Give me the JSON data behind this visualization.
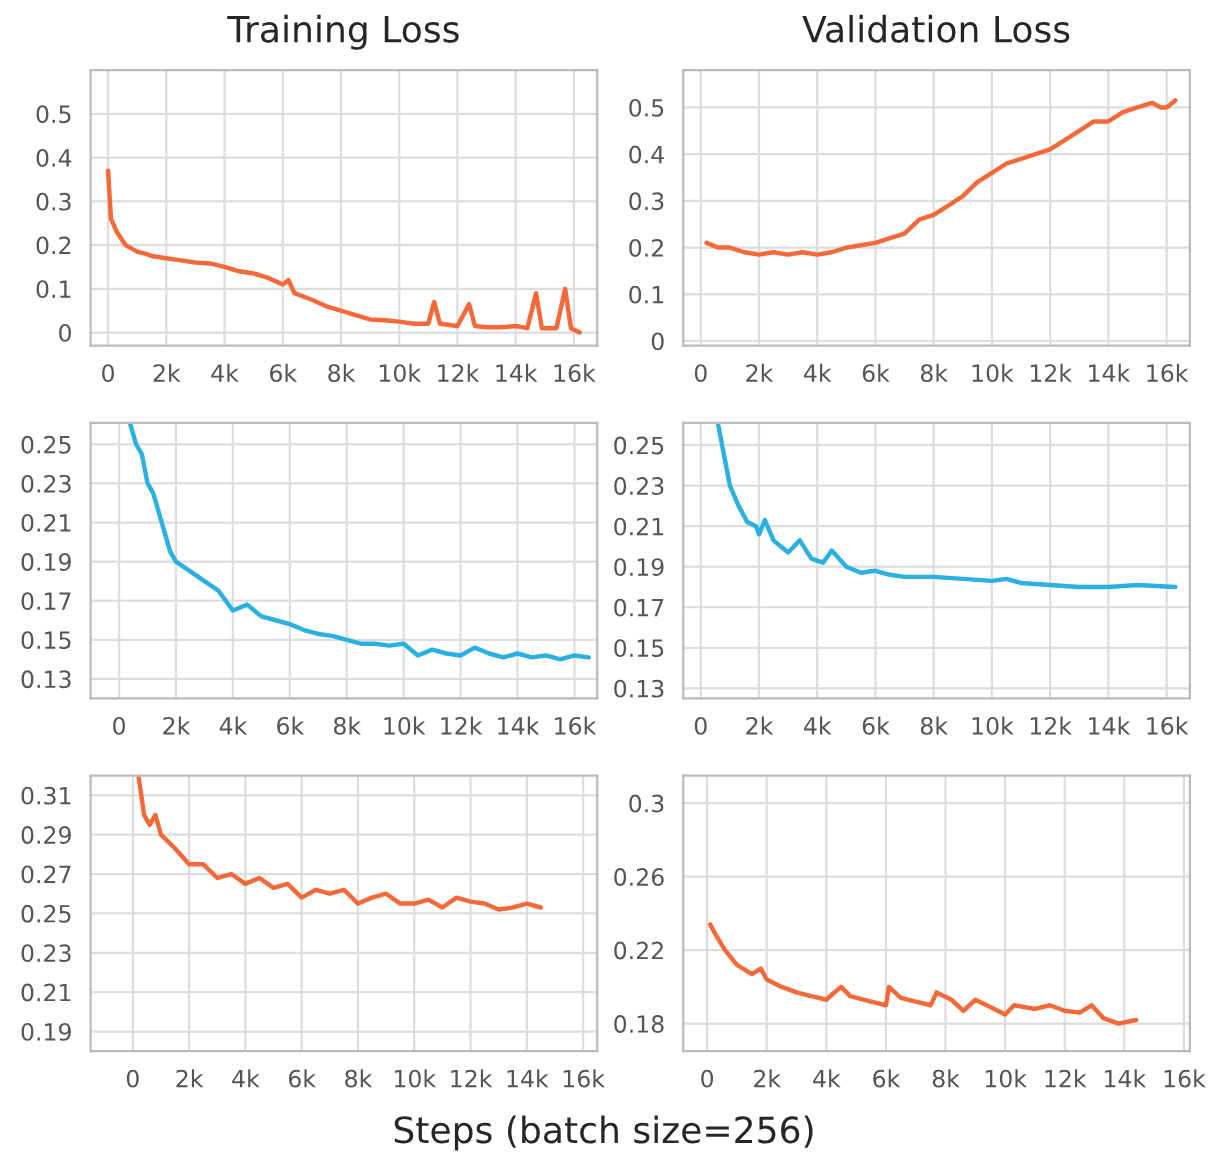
{
  "chart_data": [
    {
      "type": "line",
      "title": "Training Loss",
      "xlim": [
        -600,
        16800
      ],
      "ylim": [
        -0.03,
        0.6
      ],
      "xticks": [
        {
          "value": 0,
          "label": "0"
        },
        {
          "value": 2000,
          "label": "2k"
        },
        {
          "value": 4000,
          "label": "4k"
        },
        {
          "value": 6000,
          "label": "6k"
        },
        {
          "value": 8000,
          "label": "8k"
        },
        {
          "value": 10000,
          "label": "10k"
        },
        {
          "value": 12000,
          "label": "12k"
        },
        {
          "value": 14000,
          "label": "14k"
        },
        {
          "value": 16000,
          "label": "16k"
        }
      ],
      "yticks": [
        0,
        0.1,
        0.2,
        0.3,
        0.4,
        0.5
      ],
      "grid": true,
      "series": [
        {
          "color": "#f4693a",
          "x": [
            0,
            100,
            300,
            600,
            1000,
            1300,
            1500,
            2000,
            2500,
            3000,
            3500,
            4000,
            4500,
            5000,
            5500,
            6000,
            6200,
            6400,
            7000,
            7500,
            8000,
            8500,
            9000,
            9500,
            10000,
            10500,
            11000,
            11200,
            11400,
            12000,
            12400,
            12600,
            13000,
            13500,
            14000,
            14400,
            14700,
            14900,
            15400,
            15700,
            15900,
            16200
          ],
          "values": [
            0.37,
            0.26,
            0.23,
            0.2,
            0.185,
            0.18,
            0.175,
            0.17,
            0.165,
            0.16,
            0.158,
            0.15,
            0.14,
            0.135,
            0.125,
            0.11,
            0.12,
            0.09,
            0.075,
            0.06,
            0.05,
            0.04,
            0.03,
            0.028,
            0.025,
            0.02,
            0.02,
            0.07,
            0.02,
            0.015,
            0.065,
            0.015,
            0.012,
            0.012,
            0.015,
            0.01,
            0.09,
            0.01,
            0.01,
            0.1,
            0.01,
            0.0
          ]
        }
      ]
    },
    {
      "type": "line",
      "title": "Validation Loss",
      "xlim": [
        -600,
        16800
      ],
      "ylim": [
        -0.01,
        0.58
      ],
      "xticks": [
        {
          "value": 0,
          "label": "0"
        },
        {
          "value": 2000,
          "label": "2k"
        },
        {
          "value": 4000,
          "label": "4k"
        },
        {
          "value": 6000,
          "label": "6k"
        },
        {
          "value": 8000,
          "label": "8k"
        },
        {
          "value": 10000,
          "label": "10k"
        },
        {
          "value": 12000,
          "label": "12k"
        },
        {
          "value": 14000,
          "label": "14k"
        },
        {
          "value": 16000,
          "label": "16k"
        }
      ],
      "yticks": [
        0,
        0.1,
        0.2,
        0.3,
        0.4,
        0.5
      ],
      "grid": true,
      "series": [
        {
          "color": "#f4693a",
          "x": [
            200,
            600,
            1000,
            1500,
            2000,
            2500,
            3000,
            3500,
            4000,
            4500,
            5000,
            5500,
            6000,
            6500,
            7000,
            7500,
            8000,
            8500,
            9000,
            9500,
            10000,
            10500,
            11000,
            11500,
            12000,
            12500,
            13000,
            13500,
            14000,
            14500,
            15000,
            15500,
            15800,
            16000,
            16300
          ],
          "values": [
            0.21,
            0.2,
            0.2,
            0.19,
            0.185,
            0.19,
            0.185,
            0.19,
            0.185,
            0.19,
            0.2,
            0.205,
            0.21,
            0.22,
            0.23,
            0.26,
            0.27,
            0.29,
            0.31,
            0.34,
            0.36,
            0.38,
            0.39,
            0.4,
            0.41,
            0.43,
            0.45,
            0.47,
            0.47,
            0.49,
            0.5,
            0.51,
            0.5,
            0.5,
            0.515
          ]
        }
      ]
    },
    {
      "type": "line",
      "xlim": [
        -1000,
        16800
      ],
      "ylim": [
        0.12,
        0.261
      ],
      "xticks": [
        {
          "value": 0,
          "label": "0"
        },
        {
          "value": 2000,
          "label": "2k"
        },
        {
          "value": 4000,
          "label": "4k"
        },
        {
          "value": 6000,
          "label": "6k"
        },
        {
          "value": 8000,
          "label": "8k"
        },
        {
          "value": 10000,
          "label": "10k"
        },
        {
          "value": 12000,
          "label": "12k"
        },
        {
          "value": 14000,
          "label": "14k"
        },
        {
          "value": 16000,
          "label": "16k"
        }
      ],
      "yticks": [
        0.13,
        0.15,
        0.17,
        0.19,
        0.21,
        0.23,
        0.25
      ],
      "grid": true,
      "series": [
        {
          "color": "#2bb0e2",
          "x": [
            400,
            600,
            800,
            1000,
            1200,
            1500,
            1800,
            2000,
            2500,
            3000,
            3500,
            4000,
            4500,
            5000,
            5500,
            6000,
            6500,
            7000,
            7500,
            8000,
            8500,
            9000,
            9500,
            10000,
            10500,
            11000,
            11500,
            12000,
            12500,
            13000,
            13500,
            14000,
            14500,
            15000,
            15500,
            16000,
            16500
          ],
          "values": [
            0.26,
            0.25,
            0.245,
            0.23,
            0.225,
            0.21,
            0.195,
            0.19,
            0.185,
            0.18,
            0.175,
            0.165,
            0.168,
            0.162,
            0.16,
            0.158,
            0.155,
            0.153,
            0.152,
            0.15,
            0.148,
            0.148,
            0.147,
            0.148,
            0.142,
            0.145,
            0.143,
            0.142,
            0.146,
            0.143,
            0.141,
            0.143,
            0.141,
            0.142,
            0.14,
            0.142,
            0.141
          ]
        }
      ]
    },
    {
      "type": "line",
      "xlim": [
        -600,
        16800
      ],
      "ylim": [
        0.125,
        0.261
      ],
      "xticks": [
        {
          "value": 0,
          "label": "0"
        },
        {
          "value": 2000,
          "label": "2k"
        },
        {
          "value": 4000,
          "label": "4k"
        },
        {
          "value": 6000,
          "label": "6k"
        },
        {
          "value": 8000,
          "label": "8k"
        },
        {
          "value": 10000,
          "label": "10k"
        },
        {
          "value": 12000,
          "label": "12k"
        },
        {
          "value": 14000,
          "label": "14k"
        },
        {
          "value": 16000,
          "label": "16k"
        }
      ],
      "yticks": [
        0.13,
        0.15,
        0.17,
        0.19,
        0.21,
        0.23,
        0.25
      ],
      "grid": true,
      "series": [
        {
          "color": "#2bb0e2",
          "x": [
            600,
            800,
            1000,
            1300,
            1600,
            1900,
            2000,
            2200,
            2500,
            3000,
            3400,
            3800,
            4200,
            4500,
            5000,
            5500,
            6000,
            6500,
            7000,
            8000,
            9000,
            10000,
            10500,
            11000,
            12000,
            13000,
            14000,
            15000,
            16300
          ],
          "values": [
            0.26,
            0.245,
            0.23,
            0.22,
            0.212,
            0.21,
            0.206,
            0.213,
            0.203,
            0.197,
            0.203,
            0.194,
            0.192,
            0.198,
            0.19,
            0.187,
            0.188,
            0.186,
            0.185,
            0.185,
            0.184,
            0.183,
            0.184,
            0.182,
            0.181,
            0.18,
            0.18,
            0.181,
            0.18
          ]
        }
      ]
    },
    {
      "type": "line",
      "xlabel": "Steps (batch size=256)",
      "xlim": [
        -1500,
        16500
      ],
      "ylim": [
        0.18,
        0.32
      ],
      "xticks": [
        {
          "value": 0,
          "label": "0"
        },
        {
          "value": 2000,
          "label": "2k"
        },
        {
          "value": 4000,
          "label": "4k"
        },
        {
          "value": 6000,
          "label": "6k"
        },
        {
          "value": 8000,
          "label": "8k"
        },
        {
          "value": 10000,
          "label": "10k"
        },
        {
          "value": 12000,
          "label": "12k"
        },
        {
          "value": 14000,
          "label": "14k"
        },
        {
          "value": 16000,
          "label": "16k"
        }
      ],
      "yticks": [
        0.19,
        0.21,
        0.23,
        0.25,
        0.27,
        0.29,
        0.31
      ],
      "grid": true,
      "series": [
        {
          "color": "#f4693a",
          "x": [
            200,
            400,
            600,
            800,
            1000,
            1500,
            2000,
            2500,
            3000,
            3500,
            4000,
            4500,
            5000,
            5500,
            6000,
            6500,
            7000,
            7500,
            8000,
            8500,
            9000,
            9500,
            10000,
            10500,
            11000,
            11500,
            12000,
            12500,
            13000,
            13500,
            14000,
            14500
          ],
          "values": [
            0.32,
            0.3,
            0.295,
            0.3,
            0.29,
            0.283,
            0.275,
            0.275,
            0.268,
            0.27,
            0.265,
            0.268,
            0.263,
            0.265,
            0.258,
            0.262,
            0.26,
            0.262,
            0.255,
            0.258,
            0.26,
            0.255,
            0.255,
            0.257,
            0.253,
            0.258,
            0.256,
            0.255,
            0.252,
            0.253,
            0.255,
            0.253
          ]
        }
      ]
    },
    {
      "type": "line",
      "xlim": [
        -800,
        16200
      ],
      "ylim": [
        0.165,
        0.315
      ],
      "xticks": [
        {
          "value": 0,
          "label": "0"
        },
        {
          "value": 2000,
          "label": "2k"
        },
        {
          "value": 4000,
          "label": "4k"
        },
        {
          "value": 6000,
          "label": "6k"
        },
        {
          "value": 8000,
          "label": "8k"
        },
        {
          "value": 10000,
          "label": "10k"
        },
        {
          "value": 12000,
          "label": "12k"
        },
        {
          "value": 14000,
          "label": "14k"
        },
        {
          "value": 16000,
          "label": "16k"
        }
      ],
      "yticks": [
        0.18,
        0.22,
        0.26,
        {
          "value": 0.3,
          "label": "0.3"
        }
      ],
      "grid": true,
      "series": [
        {
          "color": "#f4693a",
          "x": [
            100,
            300,
            600,
            1000,
            1500,
            1800,
            2000,
            2500,
            3000,
            3500,
            4000,
            4200,
            4500,
            4800,
            5500,
            6000,
            6100,
            6500,
            7000,
            7500,
            7700,
            8200,
            8600,
            9000,
            9500,
            10000,
            10300,
            11000,
            11500,
            12000,
            12500,
            12900,
            13300,
            13800,
            14400
          ],
          "values": [
            0.234,
            0.228,
            0.22,
            0.212,
            0.207,
            0.21,
            0.204,
            0.2,
            0.197,
            0.195,
            0.193,
            0.196,
            0.2,
            0.195,
            0.192,
            0.19,
            0.2,
            0.194,
            0.192,
            0.19,
            0.197,
            0.193,
            0.187,
            0.193,
            0.189,
            0.185,
            0.19,
            0.188,
            0.19,
            0.187,
            0.186,
            0.19,
            0.183,
            0.18,
            0.182
          ]
        }
      ]
    }
  ]
}
